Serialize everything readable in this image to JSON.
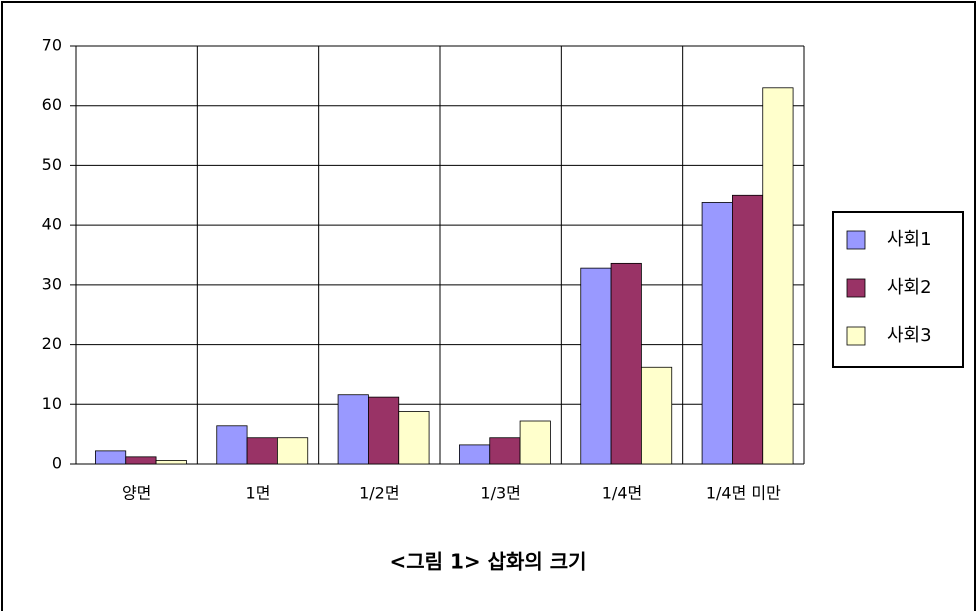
{
  "chart_data": {
    "type": "bar",
    "caption": "<그림 1> 삽화의 크기",
    "categories": [
      "양면",
      "1면",
      "1/2면",
      "1/3면",
      "1/4면",
      "1/4면 미만"
    ],
    "series": [
      {
        "name": "사회1",
        "color": "#9999ff",
        "values": [
          2.2,
          6.4,
          11.6,
          3.2,
          32.8,
          43.8
        ]
      },
      {
        "name": "사회2",
        "color": "#993366",
        "values": [
          1.2,
          4.4,
          11.2,
          4.4,
          33.6,
          45.0
        ]
      },
      {
        "name": "사회3",
        "color": "#ffffcc",
        "values": [
          0.6,
          4.4,
          8.8,
          7.2,
          16.2,
          63.0
        ]
      }
    ],
    "ylim": [
      0,
      70
    ],
    "yticks": [
      0,
      10,
      20,
      30,
      40,
      50,
      60,
      70
    ],
    "grid": true,
    "legend": "right"
  }
}
